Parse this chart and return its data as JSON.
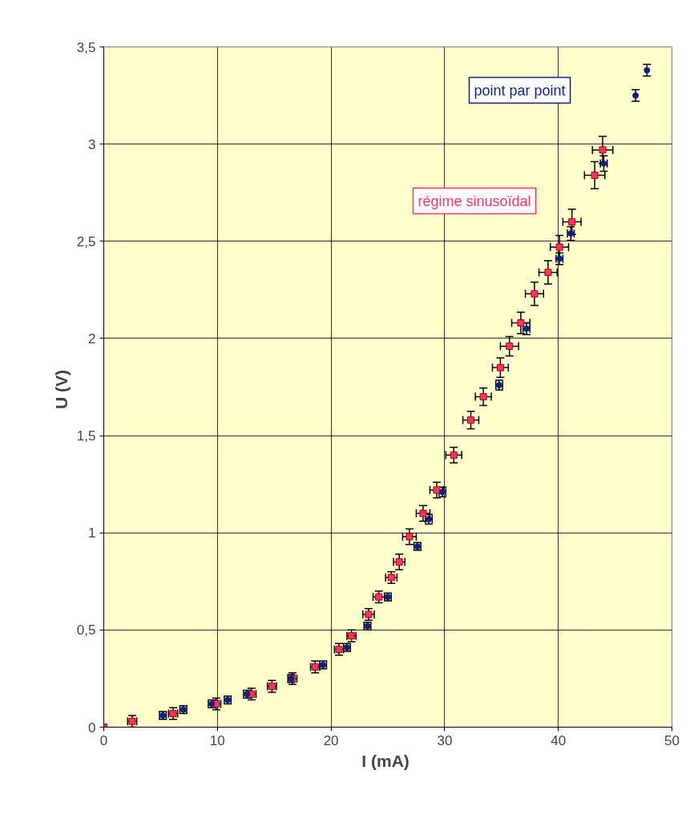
{
  "chart_data": {
    "type": "scatter",
    "xlabel": "I  (mA)",
    "ylabel": "U  (V)",
    "xlim": [
      0,
      50
    ],
    "xticks": [
      0,
      10,
      20,
      30,
      40,
      50
    ],
    "ylim": [
      0,
      3.5
    ],
    "yticks": [
      {
        "value": 0,
        "label": "0"
      },
      {
        "value": 0.5,
        "label": "0,5"
      },
      {
        "value": 1,
        "label": "1"
      },
      {
        "value": 1.5,
        "label": "1,5"
      },
      {
        "value": 2,
        "label": "2"
      },
      {
        "value": 2.5,
        "label": "2,5"
      },
      {
        "value": 3,
        "label": "3"
      },
      {
        "value": 3.5,
        "label": "3,5"
      }
    ],
    "grid": true,
    "series": [
      {
        "name": "régime sinusoïdal",
        "color": "#ff3366",
        "marker": "square",
        "x": [
          0,
          2.5,
          6.1,
          9.9,
          13.0,
          14.8,
          16.6,
          18.6,
          20.7,
          21.8,
          23.3,
          24.2,
          25.3,
          26.0,
          26.9,
          28.1,
          29.3,
          30.8,
          32.3,
          33.4,
          34.9,
          35.7,
          36.7,
          37.9,
          39.1,
          40.1,
          41.2,
          43.2,
          43.9
        ],
        "values": [
          0,
          0.03,
          0.07,
          0.12,
          0.17,
          0.21,
          0.25,
          0.31,
          0.4,
          0.47,
          0.58,
          0.67,
          0.77,
          0.85,
          0.98,
          1.1,
          1.22,
          1.4,
          1.58,
          1.7,
          1.85,
          1.96,
          2.08,
          2.23,
          2.34,
          2.47,
          2.6,
          2.84,
          2.97
        ],
        "errors": [
          null,
          0.03,
          0.03,
          0.03,
          0.03,
          0.03,
          0.03,
          0.03,
          0.03,
          0.03,
          0.03,
          0.03,
          0.03,
          0.04,
          0.04,
          0.04,
          0.04,
          0.04,
          0.045,
          0.045,
          0.05,
          0.05,
          0.055,
          0.06,
          0.06,
          0.06,
          0.065,
          0.07,
          0.07
        ],
        "xerrors": [
          null,
          0.4,
          0.4,
          0.4,
          0.4,
          0.4,
          0.4,
          0.4,
          0.4,
          0.4,
          0.5,
          0.5,
          0.5,
          0.5,
          0.6,
          0.6,
          0.6,
          0.7,
          0.7,
          0.7,
          0.7,
          0.8,
          0.8,
          0.8,
          0.8,
          0.8,
          0.8,
          0.9,
          0.9
        ]
      },
      {
        "name": "point par point",
        "color": "#0a1e8c",
        "marker": "circle",
        "x": [
          5.2,
          7.0,
          9.5,
          10.9,
          12.6,
          16.5,
          19.3,
          21.4,
          23.2,
          25.0,
          27.6,
          28.6,
          29.8,
          34.8,
          37.2,
          40.1,
          41.1,
          44.0,
          46.8,
          47.8
        ],
        "values": [
          0.06,
          0.09,
          0.12,
          0.14,
          0.17,
          0.25,
          0.32,
          0.41,
          0.52,
          0.67,
          0.93,
          1.07,
          1.21,
          1.76,
          2.05,
          2.41,
          2.54,
          2.9,
          3.25,
          3.38
        ],
        "errors": [
          0.02,
          0.02,
          0.02,
          0.02,
          0.02,
          0.02,
          0.02,
          0.02,
          0.02,
          0.02,
          0.02,
          0.025,
          0.025,
          0.025,
          0.03,
          0.03,
          0.035,
          0.04,
          0.03,
          0.03
        ],
        "xerrors": [
          0.3,
          0.3,
          0.3,
          0.3,
          0.3,
          null,
          0.3,
          0.3,
          0.3,
          0.3,
          0.3,
          0.3,
          0.3,
          0.3,
          0.3,
          0.3,
          0.3,
          0.3,
          null,
          null
        ]
      }
    ]
  }
}
